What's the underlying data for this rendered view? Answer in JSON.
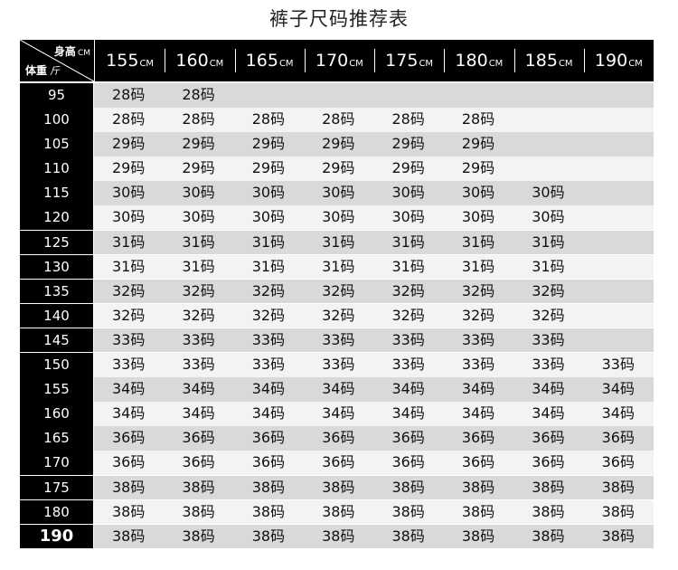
{
  "title": "裤子尺码推荐表",
  "corner": {
    "height_label": "身高",
    "height_unit": "CM",
    "weight_label": "体重",
    "weight_unit": "斤"
  },
  "height_unit": "CM",
  "columns": [
    "155",
    "160",
    "165",
    "170",
    "175",
    "180",
    "185",
    "190"
  ],
  "rows": [
    {
      "weight": "95",
      "cells": [
        "28码",
        "28码",
        "",
        "",
        "",
        "",
        "",
        ""
      ]
    },
    {
      "weight": "100",
      "cells": [
        "28码",
        "28码",
        "28码",
        "28码",
        "28码",
        "28码",
        "",
        ""
      ]
    },
    {
      "weight": "105",
      "cells": [
        "29码",
        "29码",
        "29码",
        "29码",
        "29码",
        "29码",
        "",
        ""
      ]
    },
    {
      "weight": "110",
      "cells": [
        "29码",
        "29码",
        "29码",
        "29码",
        "29码",
        "29码",
        "",
        ""
      ]
    },
    {
      "weight": "115",
      "cells": [
        "30码",
        "30码",
        "30码",
        "30码",
        "30码",
        "30码",
        "30码",
        ""
      ]
    },
    {
      "weight": "120",
      "cells": [
        "30码",
        "30码",
        "30码",
        "30码",
        "30码",
        "30码",
        "30码",
        ""
      ]
    },
    {
      "weight": "125",
      "cells": [
        "31码",
        "31码",
        "31码",
        "31码",
        "31码",
        "31码",
        "31码",
        ""
      ]
    },
    {
      "weight": "130",
      "cells": [
        "31码",
        "31码",
        "31码",
        "31码",
        "31码",
        "31码",
        "31码",
        ""
      ]
    },
    {
      "weight": "135",
      "cells": [
        "32码",
        "32码",
        "32码",
        "32码",
        "32码",
        "32码",
        "32码",
        ""
      ]
    },
    {
      "weight": "140",
      "cells": [
        "32码",
        "32码",
        "32码",
        "32码",
        "32码",
        "32码",
        "32码",
        ""
      ]
    },
    {
      "weight": "145",
      "cells": [
        "33码",
        "33码",
        "33码",
        "33码",
        "33码",
        "33码",
        "33码",
        ""
      ]
    },
    {
      "weight": "150",
      "cells": [
        "33码",
        "33码",
        "33码",
        "33码",
        "33码",
        "33码",
        "33码",
        "33码"
      ]
    },
    {
      "weight": "155",
      "cells": [
        "34码",
        "34码",
        "34码",
        "34码",
        "34码",
        "34码",
        "34码",
        "34码"
      ]
    },
    {
      "weight": "160",
      "cells": [
        "34码",
        "34码",
        "34码",
        "34码",
        "34码",
        "34码",
        "34码",
        "34码"
      ]
    },
    {
      "weight": "165",
      "cells": [
        "36码",
        "36码",
        "36码",
        "36码",
        "36码",
        "36码",
        "36码",
        "36码"
      ]
    },
    {
      "weight": "170",
      "cells": [
        "36码",
        "36码",
        "36码",
        "36码",
        "36码",
        "36码",
        "36码",
        "36码"
      ]
    },
    {
      "weight": "175",
      "cells": [
        "38码",
        "38码",
        "38码",
        "38码",
        "38码",
        "38码",
        "38码",
        "38码"
      ]
    },
    {
      "weight": "180",
      "cells": [
        "38码",
        "38码",
        "38码",
        "38码",
        "38码",
        "38码",
        "38码",
        "38码"
      ]
    },
    {
      "weight": "190",
      "cells": [
        "38码",
        "38码",
        "38码",
        "38码",
        "38码",
        "38码",
        "38码",
        "38码"
      ]
    }
  ],
  "colors": {
    "header_bg": "#000000",
    "header_text": "#ffffff",
    "row_dark": "#d9d9d9",
    "row_light": "#f3f3f3"
  }
}
